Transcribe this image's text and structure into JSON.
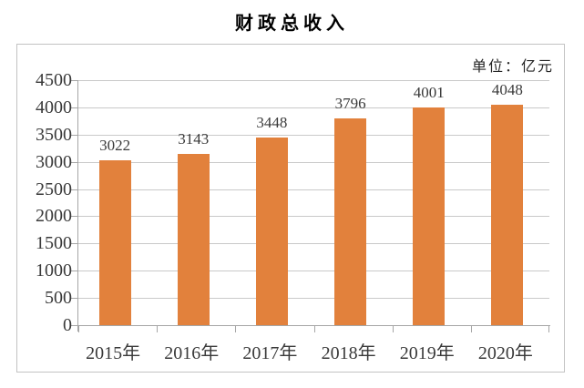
{
  "colors": {
    "bar": "#e2813c",
    "gridline": "#c9c9c9",
    "axis_line": "#a6a6a6",
    "frame_border": "#c3c3c3",
    "title_text": "#000000",
    "label_text": "#3a3a3a"
  },
  "chart_data": {
    "type": "bar",
    "title": "财政总收入",
    "unit": "单位：亿元",
    "categories": [
      "2015年",
      "2016年",
      "2017年",
      "2018年",
      "2019年",
      "2020年"
    ],
    "values": [
      3022,
      3143,
      3448,
      3796,
      4001,
      4048
    ],
    "data_labels": [
      "3022",
      "3143",
      "3448",
      "3796",
      "4001",
      "4048"
    ],
    "xlabel": "",
    "ylabel": "",
    "ylim": [
      0,
      4500
    ],
    "yticks": [
      0,
      500,
      1000,
      1500,
      2000,
      2500,
      3000,
      3500,
      4000,
      4500
    ],
    "grid": true,
    "legend_position": "none"
  }
}
